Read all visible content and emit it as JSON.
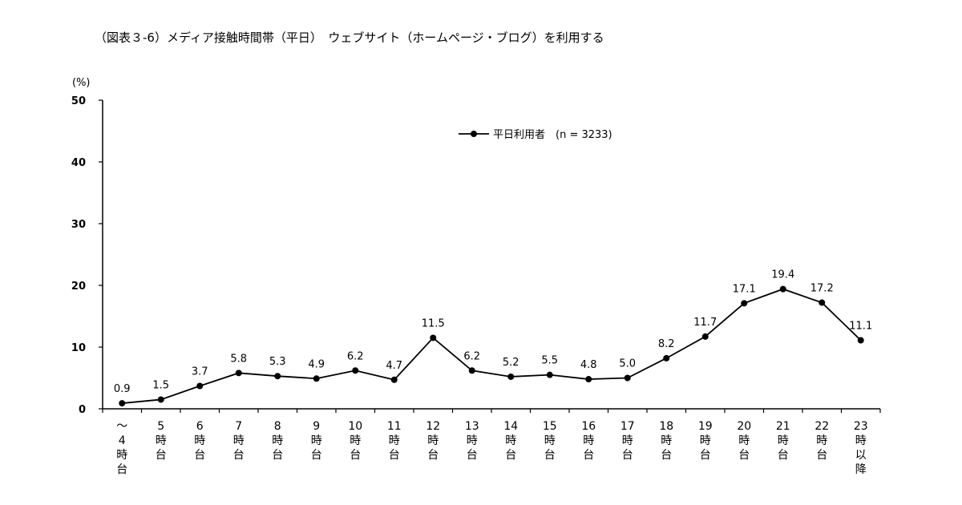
{
  "title": "（図表３-6）メディア接触時間帯（平日）　ウェブサイト（ホームページ・ブログ）を利用する",
  "chart_data": {
    "type": "line",
    "ylabel": "(%)",
    "ylim": [
      0,
      50
    ],
    "yticks": [
      0,
      10,
      20,
      30,
      40,
      50
    ],
    "categories": [
      [
        "〜",
        "4",
        "時",
        "台"
      ],
      [
        "5",
        "時",
        "台"
      ],
      [
        "6",
        "時",
        "台"
      ],
      [
        "7",
        "時",
        "台"
      ],
      [
        "8",
        "時",
        "台"
      ],
      [
        "9",
        "時",
        "台"
      ],
      [
        "10",
        "時",
        "台"
      ],
      [
        "11",
        "時",
        "台"
      ],
      [
        "12",
        "時",
        "台"
      ],
      [
        "13",
        "時",
        "台"
      ],
      [
        "14",
        "時",
        "台"
      ],
      [
        "15",
        "時",
        "台"
      ],
      [
        "16",
        "時",
        "台"
      ],
      [
        "17",
        "時",
        "台"
      ],
      [
        "18",
        "時",
        "台"
      ],
      [
        "19",
        "時",
        "台"
      ],
      [
        "20",
        "時",
        "台"
      ],
      [
        "21",
        "時",
        "台"
      ],
      [
        "22",
        "時",
        "台"
      ],
      [
        "23",
        "時",
        "以",
        "降"
      ]
    ],
    "series": [
      {
        "name": "平日利用者　(n = 3233)",
        "values": [
          0.9,
          1.5,
          3.7,
          5.8,
          5.3,
          4.9,
          6.2,
          4.7,
          11.5,
          6.2,
          5.2,
          5.5,
          4.8,
          5.0,
          8.2,
          11.7,
          17.1,
          19.4,
          17.2,
          11.1
        ],
        "labels": [
          "0.9",
          "1.5",
          "3.7",
          "5.8",
          "5.3",
          "4.9",
          "6.2",
          "4.7",
          "11.5",
          "6.2",
          "5.2",
          "5.5",
          "4.8",
          "5.0",
          "8.2",
          "11.7",
          "17.1",
          "19.4",
          "17.2",
          "11.1"
        ]
      }
    ],
    "legend_position": "top-center",
    "grid": false
  }
}
